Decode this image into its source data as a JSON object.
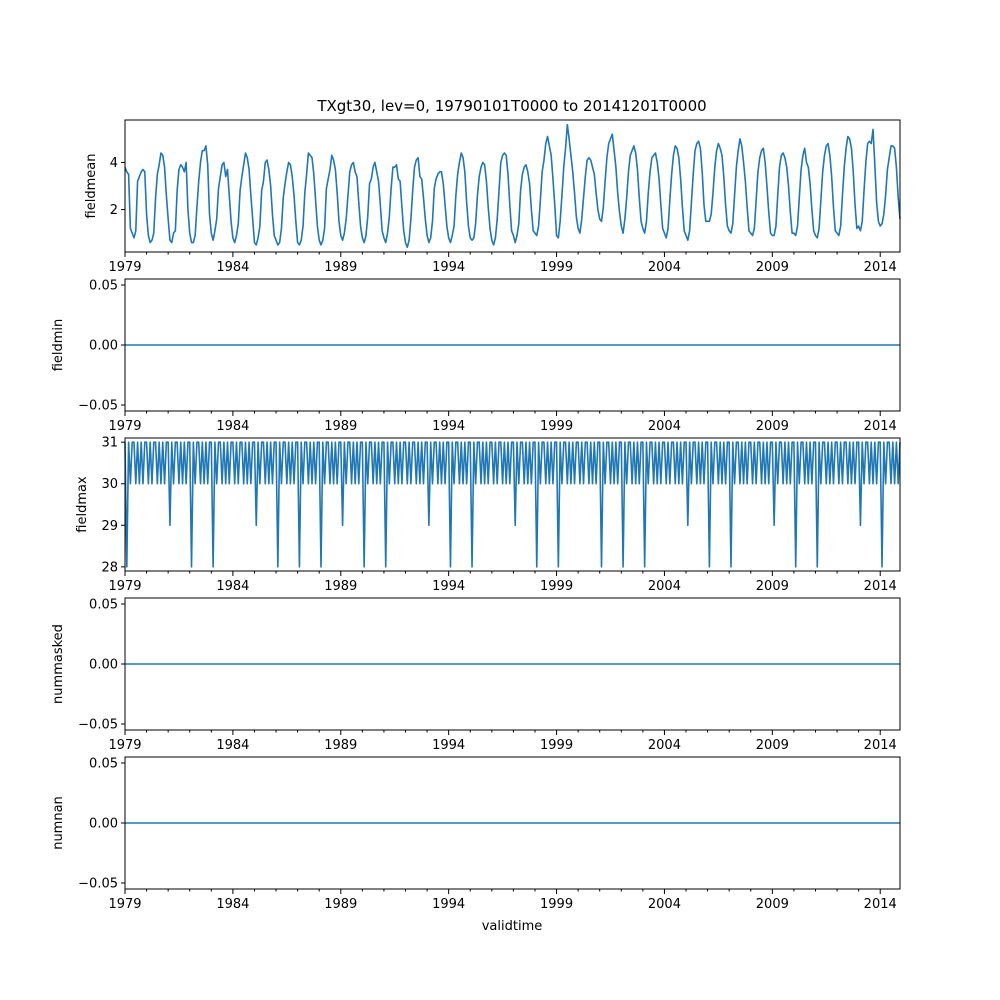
{
  "figure": {
    "title": "TXgt30, lev=0, 19790101T0000 to 20141201T0000",
    "xlabel": "validtime"
  },
  "chart_data": [
    {
      "type": "line",
      "name": "fieldmean",
      "ylabel": "fieldmean",
      "x_start": "1979-01",
      "x_end": "2014-12",
      "xlim": [
        "1979-01",
        "2014-12"
      ],
      "ylim": [
        0.2,
        5.8
      ],
      "yticks": [
        2,
        4
      ],
      "ytick_labels": [
        "2",
        "4"
      ],
      "xtick_labels": [
        "1979",
        "1984",
        "1989",
        "1994",
        "1999",
        "2004",
        "2009",
        "2014"
      ],
      "annual_cycle": [
        [
          3.8,
          3.6,
          3.5,
          1.2,
          1.0,
          0.8,
          1.1,
          3.2,
          3.4,
          3.6,
          3.7,
          3.6
        ],
        [
          1.8,
          0.9,
          0.6,
          0.7,
          1.0,
          2.5,
          3.5,
          3.9,
          4.4,
          4.3,
          3.8,
          2.6
        ],
        [
          1.6,
          0.7,
          0.6,
          1.0,
          1.1,
          2.8,
          3.7,
          3.9,
          3.8,
          3.6,
          4.0,
          2.0
        ],
        [
          1.0,
          0.6,
          0.6,
          0.9,
          2.1,
          3.2,
          4.0,
          4.5,
          4.5,
          4.7,
          3.9,
          1.8
        ],
        [
          1.0,
          0.7,
          1.1,
          1.6,
          2.9,
          3.4,
          3.9,
          4.0,
          3.4,
          3.7,
          2.6,
          1.5
        ],
        [
          0.8,
          0.6,
          0.9,
          1.4,
          2.8,
          3.4,
          3.9,
          4.4,
          4.2,
          3.7,
          2.6,
          1.6
        ],
        [
          0.6,
          0.5,
          0.8,
          1.3,
          2.8,
          3.2,
          4.0,
          4.1,
          3.7,
          3.0,
          1.8,
          0.9
        ],
        [
          0.7,
          0.5,
          0.6,
          1.2,
          2.5,
          3.1,
          3.6,
          4.0,
          3.9,
          3.4,
          2.6,
          1.5
        ],
        [
          0.6,
          0.5,
          0.7,
          1.3,
          2.7,
          3.5,
          4.4,
          4.3,
          4.2,
          3.5,
          2.4,
          1.3
        ],
        [
          0.7,
          0.5,
          0.7,
          1.2,
          2.9,
          3.3,
          3.7,
          4.3,
          4.1,
          3.7,
          2.7,
          1.5
        ],
        [
          0.9,
          0.7,
          1.0,
          1.6,
          2.6,
          3.6,
          3.9,
          4.0,
          3.6,
          3.4,
          2.3,
          1.3
        ],
        [
          0.8,
          0.6,
          0.9,
          1.7,
          3.1,
          3.3,
          3.8,
          4.0,
          3.6,
          3.2,
          2.2,
          1.1
        ],
        [
          0.8,
          0.6,
          1.0,
          1.7,
          2.9,
          3.8,
          3.8,
          3.9,
          3.3,
          3.2,
          2.1,
          1.1
        ],
        [
          0.6,
          0.4,
          0.7,
          1.6,
          2.8,
          3.8,
          4.1,
          4.2,
          3.4,
          3.3,
          2.5,
          1.6
        ],
        [
          0.9,
          0.6,
          0.8,
          1.5,
          2.9,
          3.3,
          3.5,
          3.6,
          3.6,
          3.1,
          2.2,
          1.3
        ],
        [
          0.8,
          0.6,
          0.9,
          1.3,
          2.6,
          3.5,
          4.0,
          4.4,
          4.2,
          3.6,
          2.3,
          1.3
        ],
        [
          0.8,
          0.7,
          0.8,
          1.4,
          2.6,
          3.4,
          3.8,
          4.0,
          3.9,
          3.2,
          2.1,
          1.2
        ],
        [
          0.7,
          0.5,
          0.8,
          1.6,
          2.8,
          4.0,
          4.3,
          4.4,
          4.3,
          3.5,
          2.2,
          1.1
        ],
        [
          0.9,
          0.6,
          0.9,
          1.4,
          2.8,
          3.5,
          3.8,
          3.9,
          3.6,
          3.1,
          2.0,
          1.1
        ],
        [
          1.0,
          0.9,
          1.3,
          2.4,
          3.6,
          4.1,
          4.8,
          5.1,
          4.7,
          4.3,
          3.3,
          2.2
        ],
        [
          0.9,
          0.8,
          1.5,
          2.6,
          3.8,
          4.6,
          5.6,
          5.0,
          4.3,
          3.6,
          2.7,
          1.7
        ],
        [
          1.2,
          1.0,
          1.6,
          2.5,
          3.4,
          4.1,
          4.2,
          4.1,
          3.8,
          3.5,
          2.7,
          2.0
        ],
        [
          1.6,
          1.5,
          2.1,
          3.2,
          4.2,
          4.8,
          5.0,
          5.2,
          4.5,
          3.8,
          2.7,
          1.9
        ],
        [
          1.3,
          1.0,
          1.6,
          2.5,
          3.6,
          4.3,
          4.5,
          4.7,
          4.4,
          3.7,
          2.5,
          1.5
        ],
        [
          1.2,
          1.0,
          1.5,
          2.7,
          3.6,
          4.2,
          4.3,
          4.4,
          4.0,
          3.3,
          2.2,
          1.2
        ],
        [
          1.0,
          0.8,
          1.2,
          2.4,
          3.5,
          4.3,
          4.7,
          4.6,
          4.2,
          3.3,
          2.1,
          1.1
        ],
        [
          0.9,
          0.7,
          1.1,
          2.3,
          3.5,
          4.5,
          4.8,
          4.9,
          4.6,
          3.6,
          2.2,
          1.5
        ],
        [
          1.5,
          1.5,
          1.8,
          2.7,
          3.8,
          4.5,
          4.8,
          4.6,
          4.3,
          3.4,
          2.2,
          1.3
        ],
        [
          1.1,
          1.0,
          1.4,
          2.6,
          3.8,
          4.5,
          5.0,
          4.7,
          4.0,
          3.2,
          2.1,
          1.1
        ],
        [
          1.0,
          0.9,
          1.2,
          2.4,
          3.6,
          4.2,
          4.5,
          4.6,
          4.0,
          3.0,
          1.9,
          1.0
        ],
        [
          0.9,
          0.9,
          1.3,
          2.6,
          3.8,
          4.3,
          4.4,
          4.2,
          3.8,
          3.0,
          1.9,
          1.0
        ],
        [
          1.0,
          0.9,
          1.3,
          2.5,
          3.7,
          4.3,
          4.6,
          4.0,
          3.8,
          3.1,
          2.0,
          1.1
        ],
        [
          0.9,
          0.8,
          1.2,
          2.4,
          3.6,
          4.3,
          4.7,
          4.8,
          4.3,
          3.4,
          2.1,
          1.1
        ],
        [
          1.0,
          0.9,
          1.3,
          2.6,
          3.8,
          4.6,
          5.1,
          5.0,
          4.6,
          3.6,
          2.2,
          1.2
        ],
        [
          1.3,
          1.1,
          1.5,
          2.8,
          4.0,
          4.8,
          4.9,
          4.8,
          5.4,
          3.9,
          2.3,
          1.5
        ],
        [
          1.3,
          1.4,
          1.8,
          2.6,
          3.7,
          4.2,
          4.7,
          4.7,
          4.6,
          3.8,
          2.5,
          1.6
        ]
      ]
    },
    {
      "type": "line",
      "name": "fieldmin",
      "ylabel": "fieldmin",
      "xlim": [
        "1979-01",
        "2014-12"
      ],
      "ylim": [
        -0.055,
        0.055
      ],
      "yticks": [
        -0.05,
        0.0,
        0.05
      ],
      "ytick_labels": [
        "−0.05",
        "0.00",
        "0.05"
      ],
      "xtick_labels": [
        "1979",
        "1984",
        "1989",
        "1994",
        "1999",
        "2004",
        "2009",
        "2014"
      ],
      "constant_value": 0.0
    },
    {
      "type": "line",
      "name": "fieldmax",
      "ylabel": "fieldmax",
      "xlim": [
        "1979-01",
        "2014-12"
      ],
      "ylim": [
        27.9,
        31.1
      ],
      "yticks": [
        28,
        29,
        30,
        31
      ],
      "ytick_labels": [
        "28",
        "29",
        "30",
        "31"
      ],
      "xtick_labels": [
        "1979",
        "1984",
        "1989",
        "1994",
        "1999",
        "2004",
        "2009",
        "2014"
      ],
      "pattern": [
        31,
        30,
        31,
        30,
        31,
        31,
        30,
        31,
        30,
        31,
        30,
        31
      ],
      "dips": [
        {
          "x": "1979-02",
          "value": 28
        },
        {
          "x": "1981-02",
          "value": 29
        },
        {
          "x": "1982-02",
          "value": 28
        },
        {
          "x": "1983-02",
          "value": 28
        },
        {
          "x": "1985-02",
          "value": 29
        },
        {
          "x": "1986-02",
          "value": 28
        },
        {
          "x": "1987-02",
          "value": 28
        },
        {
          "x": "1988-02",
          "value": 28
        },
        {
          "x": "1989-02",
          "value": 29
        },
        {
          "x": "1990-02",
          "value": 28
        },
        {
          "x": "1991-02",
          "value": 28
        },
        {
          "x": "1993-02",
          "value": 29
        },
        {
          "x": "1994-02",
          "value": 28
        },
        {
          "x": "1995-02",
          "value": 28
        },
        {
          "x": "1997-02",
          "value": 29
        },
        {
          "x": "1998-02",
          "value": 28
        },
        {
          "x": "1999-02",
          "value": 28
        },
        {
          "x": "2001-02",
          "value": 28
        },
        {
          "x": "2002-02",
          "value": 28
        },
        {
          "x": "2003-02",
          "value": 28
        },
        {
          "x": "2005-02",
          "value": 29
        },
        {
          "x": "2006-02",
          "value": 28
        },
        {
          "x": "2007-02",
          "value": 28
        },
        {
          "x": "2009-02",
          "value": 29
        },
        {
          "x": "2010-02",
          "value": 28
        },
        {
          "x": "2011-02",
          "value": 28
        },
        {
          "x": "2013-02",
          "value": 29
        },
        {
          "x": "2014-02",
          "value": 28
        }
      ]
    },
    {
      "type": "line",
      "name": "nummasked",
      "ylabel": "nummasked",
      "xlim": [
        "1979-01",
        "2014-12"
      ],
      "ylim": [
        -0.055,
        0.055
      ],
      "yticks": [
        -0.05,
        0.0,
        0.05
      ],
      "ytick_labels": [
        "−0.05",
        "0.00",
        "0.05"
      ],
      "xtick_labels": [
        "1979",
        "1984",
        "1989",
        "1994",
        "1999",
        "2004",
        "2009",
        "2014"
      ],
      "constant_value": 0.0
    },
    {
      "type": "line",
      "name": "numnan",
      "ylabel": "numnan",
      "xlim": [
        "1979-01",
        "2014-12"
      ],
      "ylim": [
        -0.055,
        0.055
      ],
      "yticks": [
        -0.05,
        0.0,
        0.05
      ],
      "ytick_labels": [
        "−0.05",
        "0.00",
        "0.05"
      ],
      "xtick_labels": [
        "1979",
        "1984",
        "1989",
        "1994",
        "1999",
        "2004",
        "2009",
        "2014"
      ],
      "constant_value": 0.0
    }
  ]
}
